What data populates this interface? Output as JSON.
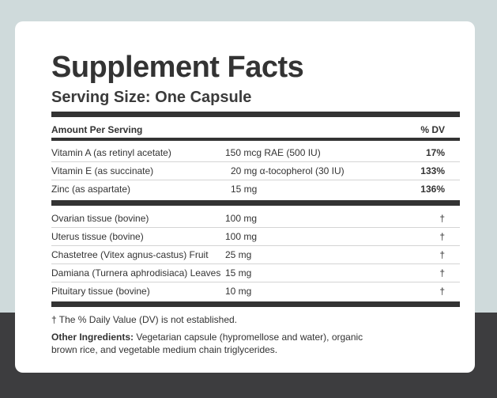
{
  "title": "Supplement Facts",
  "serving_size": "Serving Size: One Capsule",
  "header": {
    "amount_label": "Amount Per Serving",
    "dv_label": "% DV"
  },
  "vitamins": [
    {
      "name": "Vitamin A (as retinyl acetate)",
      "amount": "150 mcg RAE (500 IU)",
      "dv": "17%"
    },
    {
      "name": "Vitamin E (as succinate)",
      "amount": "20 mg α-tocopherol (30 IU)",
      "dv": "133%"
    },
    {
      "name": "Zinc (as aspartate)",
      "amount": "15 mg",
      "dv": "136%"
    }
  ],
  "tissues": [
    {
      "name": "Ovarian tissue (bovine)",
      "amount": "100 mg",
      "dv": "†"
    },
    {
      "name": "Uterus tissue (bovine)",
      "amount": "100 mg",
      "dv": "†"
    },
    {
      "name": "Chastetree (Vitex agnus-castus) Fruit",
      "amount": "25 mg",
      "dv": "†"
    },
    {
      "name": "Damiana (Turnera aphrodisiaca) Leaves",
      "amount": "15 mg",
      "dv": "†"
    },
    {
      "name": "Pituitary tissue (bovine)",
      "amount": "10 mg",
      "dv": "†"
    }
  ],
  "footnote": "† The % Daily Value (DV) is not established.",
  "other_ingredients": {
    "label": "Other Ingredients:",
    "text": " Vegetarian capsule (hypromellose and water), organic brown rice, and vegetable medium chain triglycerides."
  }
}
